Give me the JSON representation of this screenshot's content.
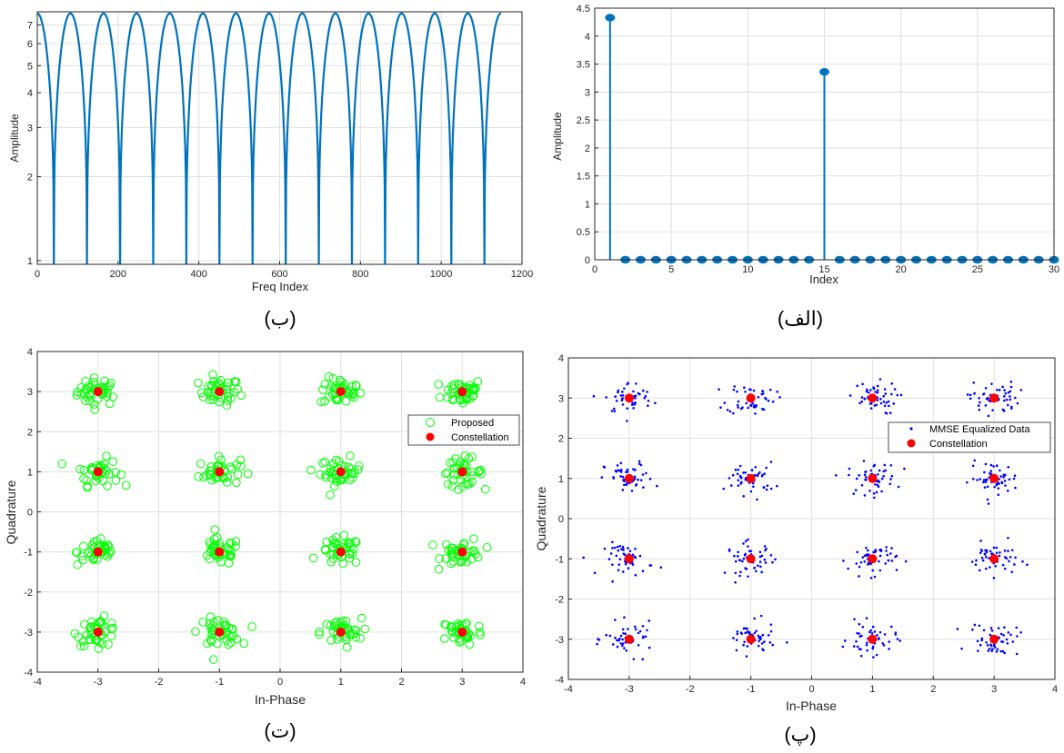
{
  "figure": {
    "captions": [
      "(ب)",
      "(الف)",
      "(ت)",
      "(پ)"
    ]
  },
  "colors": {
    "axis": "#262626",
    "grid": "#dfdfdf",
    "matlab_blue": "#0072bd",
    "proposed_green": "#00ff00",
    "constellation_red": "#ff0000",
    "equalized_blue": "#0000ff"
  },
  "chart_data": [
    {
      "id": "panel-b",
      "caption": "(ب)",
      "type": "line",
      "xlabel": "Freq Index",
      "ylabel": "Amplitude",
      "yscale": "log",
      "xlim": [
        0,
        1200
      ],
      "ylim": [
        0.97,
        7.8
      ],
      "xticks": [
        0,
        200,
        400,
        600,
        800,
        1000,
        1200
      ],
      "yticks": [
        1,
        2,
        3,
        4,
        5,
        6,
        7
      ],
      "grid": true,
      "series": [
        {
          "description_note": "",
          "x_peaks": [
            0,
            82,
            164,
            246,
            328,
            410,
            492,
            574,
            656,
            738,
            820,
            902,
            984,
            1066,
            1148
          ],
          "x_nulls": [
            41,
            123,
            205,
            287,
            369,
            451,
            533,
            615,
            697,
            779,
            861,
            943,
            1025,
            1107
          ],
          "peak_value": 7.7,
          "null_value": 0.97,
          "x_end": 1148
        }
      ]
    },
    {
      "id": "panel-alef",
      "caption": "(الف)",
      "type": "stem",
      "xlabel": "Index",
      "ylabel": "Amplitude",
      "xlim": [
        0,
        30
      ],
      "ylim": [
        0,
        4.5
      ],
      "xticks": [
        0,
        5,
        10,
        15,
        20,
        25,
        30
      ],
      "yticks": [
        0,
        0.5,
        1,
        1.5,
        2,
        2.5,
        3,
        3.5,
        4,
        4.5
      ],
      "grid": true,
      "x": [
        1,
        2,
        3,
        4,
        5,
        6,
        7,
        8,
        9,
        10,
        11,
        12,
        13,
        14,
        15,
        16,
        17,
        18,
        19,
        20,
        21,
        22,
        23,
        24,
        25,
        26,
        27,
        28,
        29,
        30
      ],
      "values": [
        4.33,
        0,
        0,
        0,
        0,
        0,
        0,
        0,
        0,
        0,
        0,
        0,
        0,
        0,
        3.36,
        0,
        0,
        0,
        0,
        0,
        0,
        0,
        0,
        0,
        0,
        0,
        0,
        0,
        0,
        0
      ]
    },
    {
      "id": "panel-te",
      "caption": "(ت)",
      "type": "scatter",
      "xlabel": "In-Phase",
      "ylabel": "Quadrature",
      "xlim": [
        -4,
        4
      ],
      "ylim": [
        -4,
        4
      ],
      "xticks": [
        -4,
        -3,
        -2,
        -1,
        0,
        1,
        2,
        3,
        4
      ],
      "yticks": [
        -4,
        -3,
        -2,
        -1,
        0,
        1,
        2,
        3,
        4
      ],
      "grid": true,
      "legend": {
        "position": "right",
        "entries": [
          "Proposed",
          "Constellation"
        ]
      },
      "series": [
        {
          "name": "Proposed",
          "marker": "open-circle",
          "color": "#00ff00",
          "points_per_symbol": 40,
          "spread": 0.17
        },
        {
          "name": "Constellation",
          "marker": "filled-circle",
          "color": "#ff0000",
          "x": [
            -3,
            -1,
            1,
            3,
            -3,
            -1,
            1,
            3,
            -3,
            -1,
            1,
            3,
            -3,
            -1,
            1,
            3
          ],
          "y": [
            3,
            3,
            3,
            3,
            1,
            1,
            1,
            1,
            -1,
            -1,
            -1,
            -1,
            -3,
            -3,
            -3,
            -3
          ]
        }
      ]
    },
    {
      "id": "panel-pe",
      "caption": "(پ)",
      "type": "scatter",
      "xlabel": "In-Phase",
      "ylabel": "Quadrature",
      "xlim": [
        -4,
        4
      ],
      "ylim": [
        -4,
        4
      ],
      "xticks": [
        -4,
        -3,
        -2,
        -1,
        0,
        1,
        2,
        3,
        4
      ],
      "yticks": [
        -4,
        -3,
        -2,
        -1,
        0,
        1,
        2,
        3,
        4
      ],
      "grid": true,
      "legend": {
        "position": "right",
        "entries": [
          "MMSE Equalized Data",
          "Constellation"
        ]
      },
      "series": [
        {
          "name": "MMSE Equalized Data",
          "marker": "dot",
          "color": "#0000ff",
          "points_per_symbol": 50,
          "spread": 0.2
        },
        {
          "name": "Constellation",
          "marker": "filled-circle",
          "color": "#ff0000",
          "x": [
            -3,
            -1,
            1,
            3,
            -3,
            -1,
            1,
            3,
            -3,
            -1,
            1,
            3,
            -3,
            -1,
            1,
            3
          ],
          "y": [
            3,
            3,
            3,
            3,
            1,
            1,
            1,
            1,
            -1,
            -1,
            -1,
            -1,
            -3,
            -3,
            -3,
            -3
          ]
        }
      ]
    }
  ]
}
